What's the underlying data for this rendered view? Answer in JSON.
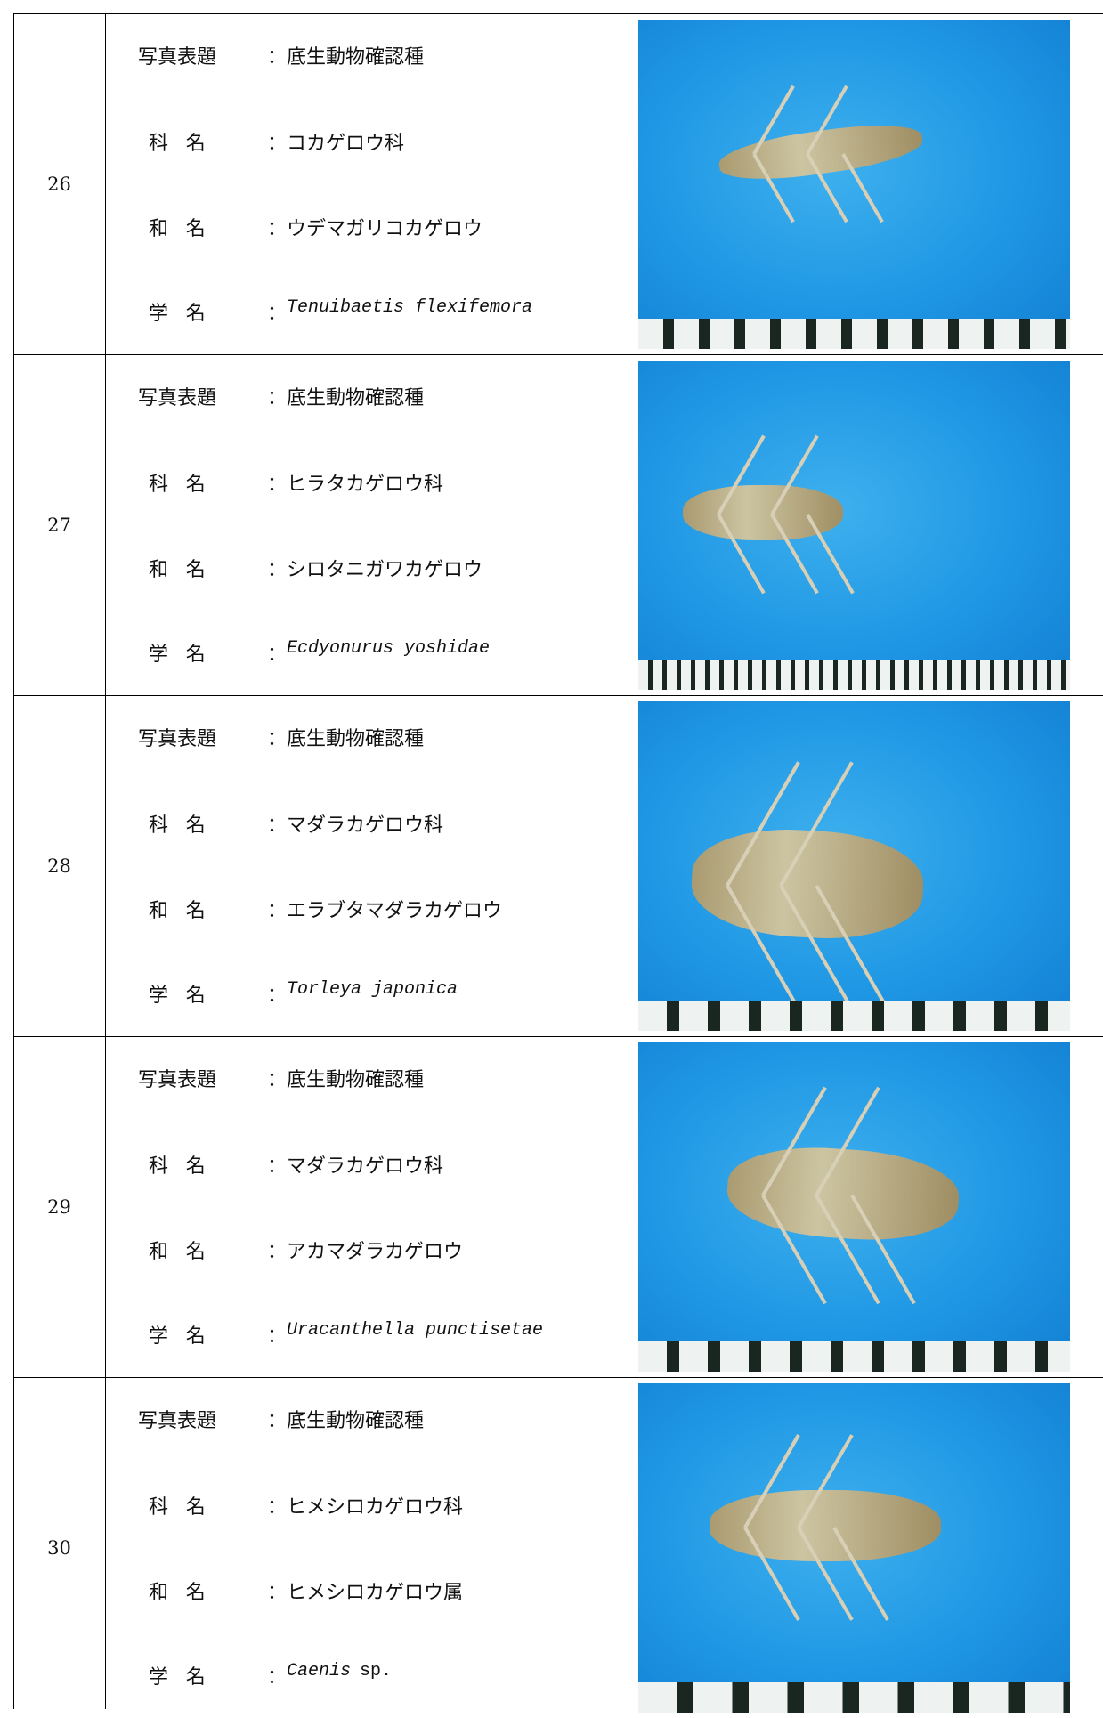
{
  "separator": "：",
  "rows": [
    {
      "number": "26",
      "fields": [
        {
          "label": "写真表題",
          "value": "底生動物確認種"
        },
        {
          "label": "科名",
          "value": "コカゲロウ科"
        },
        {
          "label": "和名",
          "value": "ウデマガリコカゲロウ"
        },
        {
          "label": "学名",
          "value": "Tenuibaetis flexifemora"
        }
      ]
    },
    {
      "number": "27",
      "fields": [
        {
          "label": "写真表題",
          "value": "底生動物確認種"
        },
        {
          "label": "科名",
          "value": "ヒラタカゲロウ科"
        },
        {
          "label": "和名",
          "value": "シロタニガワカゲロウ"
        },
        {
          "label": "学名",
          "value": "Ecdyonurus yoshidae"
        }
      ]
    },
    {
      "number": "28",
      "fields": [
        {
          "label": "写真表題",
          "value": "底生動物確認種"
        },
        {
          "label": "科名",
          "value": "マダラカゲロウ科"
        },
        {
          "label": "和名",
          "value": "エラブタマダラカゲロウ"
        },
        {
          "label": "学名",
          "value": "Torleya japonica"
        }
      ]
    },
    {
      "number": "29",
      "fields": [
        {
          "label": "写真表題",
          "value": "底生動物確認種"
        },
        {
          "label": "科名",
          "value": "マダラカゲロウ科"
        },
        {
          "label": "和名",
          "value": "アカマダラカゲロウ"
        },
        {
          "label": "学名",
          "value": "Uracanthella punctisetae"
        }
      ]
    },
    {
      "number": "30",
      "fields": [
        {
          "label": "写真表題",
          "value": "底生動物確認種"
        },
        {
          "label": "科名",
          "value": "ヒメシロカゲロウ科"
        },
        {
          "label": "和名",
          "value": "ヒメシロカゲロウ属"
        },
        {
          "label": "学名",
          "value": "Caenis",
          "suffix": "sp."
        }
      ]
    }
  ]
}
